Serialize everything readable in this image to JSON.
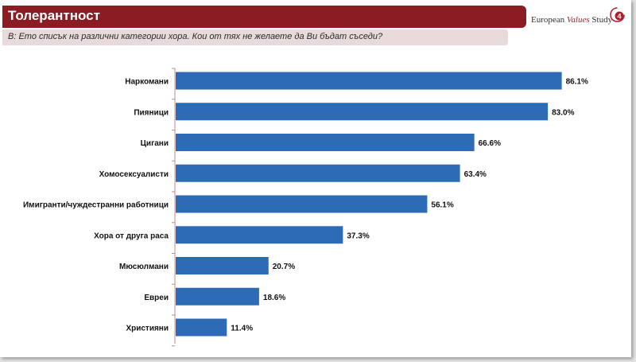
{
  "header": {
    "title": "Толерантност",
    "brand": {
      "prefix": "European ",
      "accent": "Values",
      "suffix": " Study",
      "logo_number": "4"
    }
  },
  "question": {
    "text": "В: Ето списък на различни категории хора. Кои от тях не желаете да Ви бъдат съседи?"
  },
  "colors": {
    "bar": "#2e6bb5",
    "title_bg": "#8b1c23",
    "question_bg": "#e8d9db",
    "axis": "#c48a8f"
  },
  "chart_data": {
    "type": "bar",
    "orientation": "horizontal",
    "categories": [
      "Наркомани",
      "Пияници",
      "Цигани",
      "Хомосексуалисти",
      "Имигранти/чуждестранни работници",
      "Хора от друга раса",
      "Мюсюлмани",
      "Евреи",
      "Християни"
    ],
    "values": [
      86.1,
      83.0,
      66.6,
      63.4,
      56.1,
      37.3,
      20.7,
      18.6,
      11.4
    ],
    "labels": [
      "86.1%",
      "83.0%",
      "66.6%",
      "63.4%",
      "56.1%",
      "37.3%",
      "20.7%",
      "18.6%",
      "11.4%"
    ],
    "xlim": [
      0,
      100
    ],
    "grid": false,
    "legend": "none"
  }
}
